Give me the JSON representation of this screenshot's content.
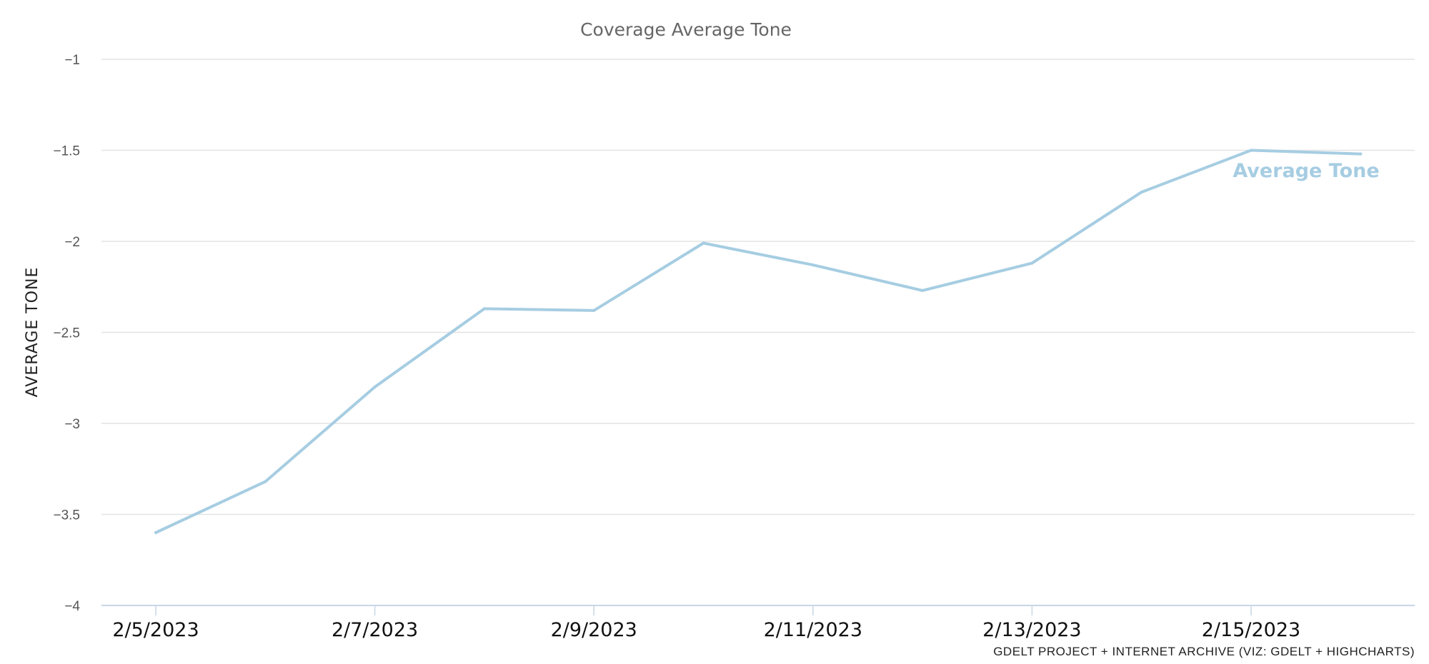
{
  "chart_data": {
    "type": "line",
    "title": "Coverage Average Tone",
    "ylabel": "AVERAGE TONE",
    "xlabel": "",
    "x": [
      "2/5/2023",
      "2/6/2023",
      "2/7/2023",
      "2/8/2023",
      "2/9/2023",
      "2/10/2023",
      "2/11/2023",
      "2/12/2023",
      "2/13/2023",
      "2/14/2023",
      "2/15/2023",
      "2/16/2023"
    ],
    "x_tick_labels": [
      "2/5/2023",
      "2/7/2023",
      "2/9/2023",
      "2/11/2023",
      "2/13/2023",
      "2/15/2023"
    ],
    "ylim": [
      -4,
      -1
    ],
    "y_ticks": [
      -1,
      -1.5,
      -2,
      -2.5,
      -3,
      -3.5,
      -4
    ],
    "grid": true,
    "series": [
      {
        "name": "Average Tone",
        "color": "#a6cde2",
        "values": [
          -3.6,
          -3.32,
          -2.8,
          -2.37,
          -2.38,
          -2.01,
          -2.13,
          -2.27,
          -2.12,
          -1.73,
          -1.5,
          -1.52
        ]
      }
    ],
    "credits": "GDELT PROJECT + INTERNET ARCHIVE (VIZ: GDELT + HIGHCHARTS)"
  }
}
